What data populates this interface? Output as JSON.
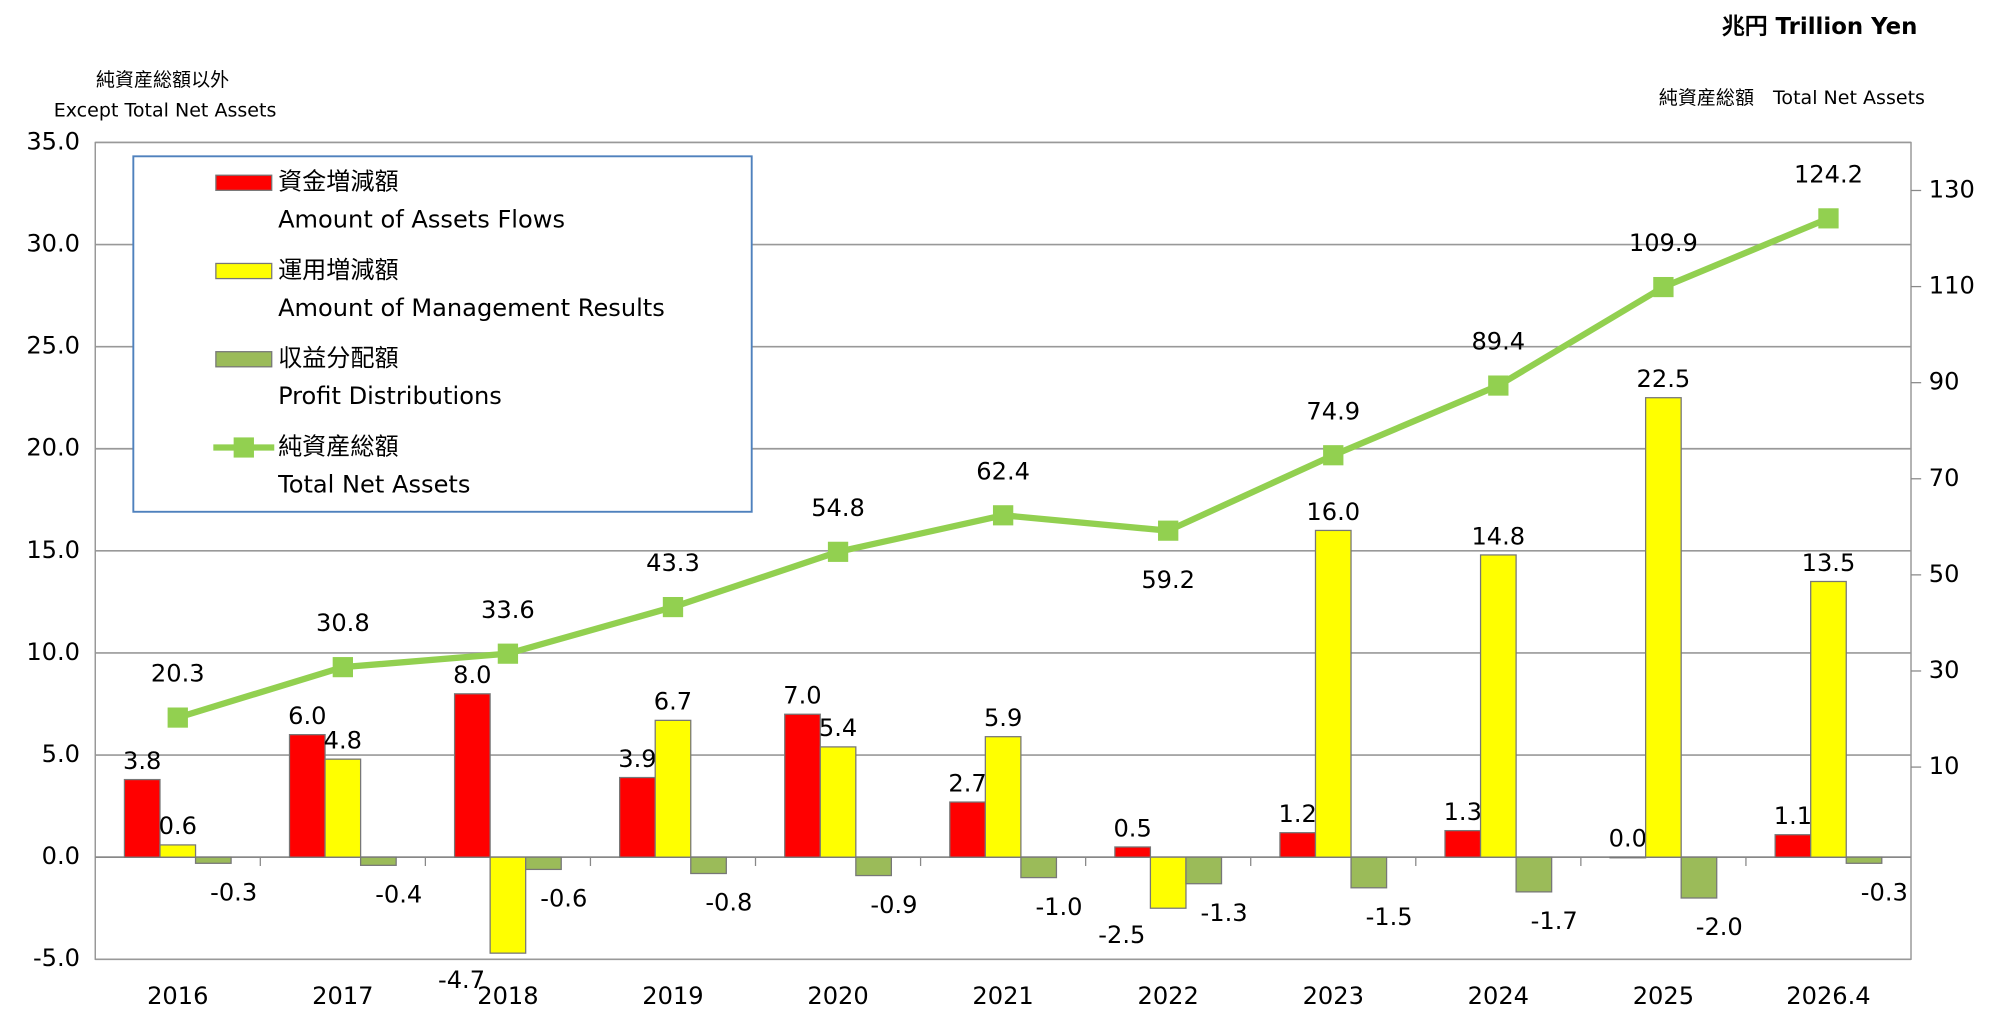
{
  "chart_data": {
    "type": "bar_line",
    "unit_title": "兆円 Trillion Yen",
    "y_label": "純資産総額以外",
    "y_label_en": "Except Total Net Assets",
    "y2_label": "純資産総額　Total Net Assets",
    "categories": [
      "2016",
      "2017",
      "2018",
      "2019",
      "2020",
      "2021",
      "2022",
      "2023",
      "2024",
      "2025",
      "2026.4"
    ],
    "ylim": [
      -5,
      35
    ],
    "yticks": [
      {
        "value": -5,
        "label": "-5.0"
      },
      {
        "value": 0,
        "label": "0.0"
      },
      {
        "value": 5,
        "label": "5.0"
      },
      {
        "value": 10,
        "label": "10.0"
      },
      {
        "value": 15,
        "label": "15.0"
      },
      {
        "value": 20,
        "label": "20.0"
      },
      {
        "value": 25,
        "label": "25.0"
      },
      {
        "value": 30,
        "label": "30.0"
      },
      {
        "value": 35,
        "label": "35.0"
      }
    ],
    "y2lim": [
      -30,
      140
    ],
    "y2ticks": [
      10,
      30,
      50,
      70,
      90,
      110,
      130
    ],
    "grid": true,
    "legend": "upper left",
    "series": [
      {
        "name": "資金増減額",
        "name_en": "Amount of Assets Flows",
        "kind": "bar",
        "color": "#ff0000",
        "values": [
          3.8,
          6.0,
          8.0,
          3.9,
          7.0,
          2.7,
          0.5,
          1.2,
          1.3,
          0.0,
          1.1
        ],
        "value_labels": [
          "3.8",
          "6.0",
          "8.0",
          "3.9",
          "7.0",
          "2.7",
          "0.5",
          "1.2",
          "1.3",
          "0.0",
          "1.1"
        ]
      },
      {
        "name": "運用増減額",
        "name_en": "Amount of Management Results",
        "kind": "bar",
        "color": "#ffff00",
        "values": [
          0.6,
          4.8,
          -4.7,
          6.7,
          5.4,
          5.9,
          -2.5,
          16.0,
          14.8,
          22.5,
          13.5
        ],
        "value_labels": [
          "0.6",
          "4.8",
          "-4.7",
          "6.7",
          "5.4",
          "5.9",
          "-2.5",
          "16.0",
          "14.8",
          "22.5",
          "13.5"
        ]
      },
      {
        "name": "収益分配額",
        "name_en": "Profit Distributions",
        "kind": "bar",
        "color": "#9bbb59",
        "values": [
          -0.3,
          -0.4,
          -0.6,
          -0.8,
          -0.9,
          -1.0,
          -1.3,
          -1.5,
          -1.7,
          -2.0,
          -0.3
        ],
        "value_labels": [
          "-0.3",
          "-0.4",
          "-0.6",
          "-0.8",
          "-0.9",
          "-1.0",
          "-1.3",
          "-1.5",
          "-1.7",
          "-2.0",
          "-0.3"
        ]
      },
      {
        "name": "純資産総額",
        "name_en": "Total Net Assets",
        "kind": "line",
        "axis": "y2",
        "color": "#92d050",
        "values": [
          20.3,
          30.8,
          33.6,
          43.3,
          54.8,
          62.4,
          59.2,
          74.9,
          89.4,
          109.9,
          124.2
        ]
      }
    ]
  }
}
